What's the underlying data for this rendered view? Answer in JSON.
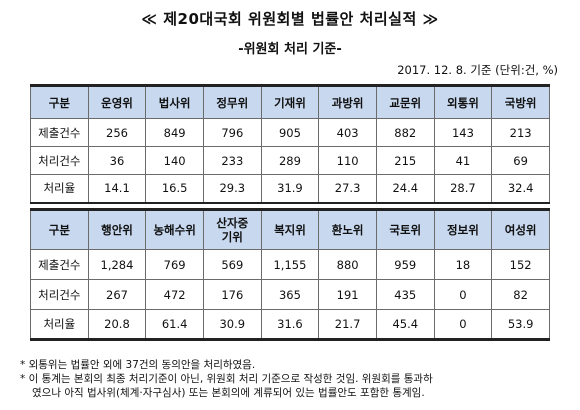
{
  "title": "≪ 제20대국회 위원회별 법률안 처리실적 ≫",
  "subtitle": "-위원회 처리 기준-",
  "date_unit": "2017. 12. 8. 기준 (단위:건, %)",
  "table1": {
    "header": [
      "구분",
      "운영위",
      "법사위",
      "정무위",
      "기재위",
      "과방위",
      "교문위",
      "외통위",
      "국방위"
    ],
    "rows": [
      [
        "제출건수",
        "256",
        "849",
        "796",
        "905",
        "403",
        "882",
        "143",
        "213"
      ],
      [
        "처리건수",
        "36",
        "140",
        "233",
        "289",
        "110",
        "215",
        "41",
        "69"
      ],
      [
        "처리율",
        "14.1",
        "16.5",
        "29.3",
        "31.9",
        "27.3",
        "24.4",
        "28.7",
        "32.4"
      ]
    ]
  },
  "table2": {
    "header": [
      "구분",
      "행안위",
      "농해수위",
      "산자중기위",
      "복지위",
      "환노위",
      "국토위",
      "정보위",
      "여성위"
    ],
    "rows": [
      [
        "제출건수",
        "1,284",
        "769",
        "569",
        "1,155",
        "880",
        "959",
        "18",
        "152"
      ],
      [
        "처리건수",
        "267",
        "472",
        "176",
        "365",
        "191",
        "435",
        "0",
        "82"
      ],
      [
        "처리율",
        "20.8",
        "61.4",
        "30.9",
        "31.6",
        "21.7",
        "45.4",
        "0",
        "53.9"
      ]
    ]
  },
  "notes": [
    "* 외통위는 법률안 외에 37건의 동의안을 처리하였음.",
    "* 이 통계는 본회의 최종 처리기준이 아닌, 위원회 처리 기준으로 작성한 것임. 위원회를 통과하",
    "였으나 아직 법사위(체계·자구심사) 또는 본회의에 계류되어 있는 법률안도 포함한 통계임."
  ]
}
